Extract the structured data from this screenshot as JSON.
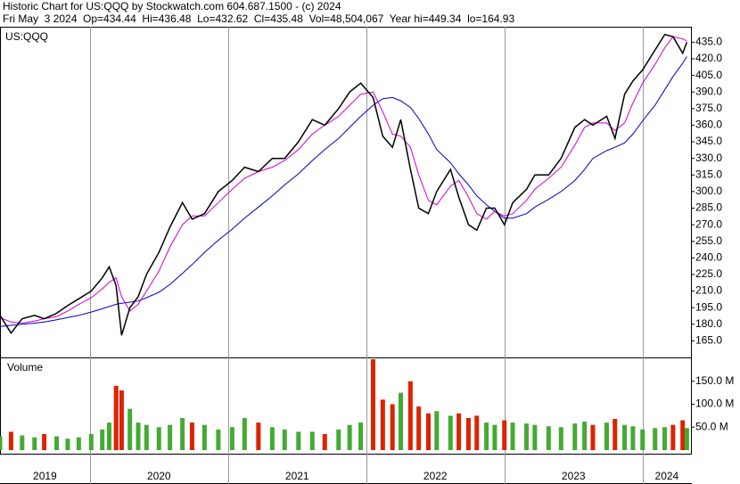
{
  "chart_data": {
    "type": "line",
    "title": "Historic Chart for US:QQQ by Stockwatch.com 604.687.1500 - (c) 2024",
    "subtitle": "Fri May  3 2024  Op=434.44  Hi=436.48  Lo=432.62  Cl=435.48  Vol=48,504,067  Year hi=449.34  lo=164.93",
    "symbol": "US:QQQ",
    "x": [
      2019.35,
      2019.43,
      2019.51,
      2019.6,
      2019.67,
      2019.76,
      2019.84,
      2019.92,
      2020.01,
      2020.09,
      2020.14,
      2020.19,
      2020.23,
      2020.29,
      2020.35,
      2020.41,
      2020.5,
      2020.58,
      2020.67,
      2020.74,
      2020.83,
      2020.93,
      2021.03,
      2021.12,
      2021.22,
      2021.32,
      2021.41,
      2021.51,
      2021.61,
      2021.7,
      2021.8,
      2021.88,
      2021.96,
      2022.05,
      2022.12,
      2022.19,
      2022.25,
      2022.32,
      2022.38,
      2022.45,
      2022.51,
      2022.61,
      2022.67,
      2022.74,
      2022.8,
      2022.87,
      2022.93,
      2023.0,
      2023.06,
      2023.16,
      2023.22,
      2023.32,
      2023.41,
      2023.51,
      2023.58,
      2023.64,
      2023.74,
      2023.8,
      2023.87,
      2023.93,
      2024.0,
      2024.09,
      2024.16,
      2024.22,
      2024.29,
      2024.32
    ],
    "xlim": [
      2019.35,
      2024.35
    ],
    "xticks": [
      2020,
      2021,
      2022,
      2023,
      2024
    ],
    "year_labels": [
      "2019",
      "2020",
      "2021",
      "2022",
      "2023",
      "2024"
    ],
    "grid": "x",
    "series": [
      {
        "color": "#000000",
        "values": [
          188,
          172,
          185,
          188,
          185,
          190,
          197,
          203,
          210,
          222,
          232,
          215,
          170,
          195,
          205,
          225,
          245,
          268,
          290,
          275,
          280,
          300,
          310,
          322,
          318,
          330,
          330,
          345,
          365,
          360,
          375,
          390,
          398,
          385,
          350,
          340,
          365,
          320,
          285,
          280,
          300,
          320,
          295,
          270,
          265,
          285,
          285,
          270,
          290,
          302,
          315,
          315,
          330,
          358,
          365,
          360,
          368,
          348,
          388,
          400,
          410,
          428,
          442,
          440,
          425,
          435
        ]
      },
      {
        "color": "#d000d0",
        "values": [
          186,
          182,
          181,
          183,
          185,
          187,
          192,
          198,
          204,
          212,
          218,
          222,
          205,
          192,
          198,
          210,
          228,
          250,
          270,
          278,
          278,
          290,
          302,
          312,
          318,
          322,
          328,
          338,
          352,
          360,
          368,
          378,
          388,
          390,
          372,
          352,
          350,
          340,
          315,
          292,
          288,
          305,
          310,
          295,
          280,
          275,
          282,
          278,
          280,
          292,
          302,
          312,
          322,
          342,
          358,
          362,
          362,
          355,
          362,
          380,
          398,
          415,
          430,
          440,
          438,
          436
        ]
      },
      {
        "color": "#0000c0",
        "values": [
          178,
          179,
          180,
          181,
          182,
          184,
          186,
          188,
          191,
          194,
          196,
          198,
          199,
          200,
          201,
          204,
          209,
          216,
          226,
          234,
          245,
          256,
          266,
          276,
          286,
          296,
          306,
          316,
          328,
          338,
          348,
          358,
          368,
          378,
          384,
          385,
          382,
          376,
          366,
          352,
          338,
          326,
          316,
          306,
          296,
          288,
          282,
          276,
          276,
          280,
          286,
          293,
          300,
          310,
          320,
          330,
          337,
          340,
          344,
          352,
          364,
          378,
          392,
          404,
          416,
          422
        ]
      }
    ],
    "ylim": [
      150,
      449
    ],
    "yticks": [
      {
        "value": 165,
        "label": "165.0"
      },
      {
        "value": 180,
        "label": "180.0"
      },
      {
        "value": 195,
        "label": "195.0"
      },
      {
        "value": 210,
        "label": "210.0"
      },
      {
        "value": 225,
        "label": "225.0"
      },
      {
        "value": 240,
        "label": "240.0"
      },
      {
        "value": 255,
        "label": "255.0"
      },
      {
        "value": 270,
        "label": "270.0"
      },
      {
        "value": 285,
        "label": "285.0"
      },
      {
        "value": 300,
        "label": "300.0"
      },
      {
        "value": 315,
        "label": "315.0"
      },
      {
        "value": 330,
        "label": "330.0"
      },
      {
        "value": 345,
        "label": "345.0"
      },
      {
        "value": 360,
        "label": "360.0"
      },
      {
        "value": 375,
        "label": "375.0"
      },
      {
        "value": 390,
        "label": "390.0"
      },
      {
        "value": 405,
        "label": "405.0"
      },
      {
        "value": 420,
        "label": "420.0"
      },
      {
        "value": 435,
        "label": "435.0"
      }
    ],
    "volume": {
      "label": "Volume",
      "up_color": "#44aa33",
      "down_color": "#dd2200",
      "values": [
        30,
        40,
        32,
        28,
        35,
        30,
        25,
        28,
        35,
        45,
        60,
        140,
        130,
        90,
        60,
        55,
        50,
        55,
        70,
        60,
        55,
        45,
        50,
        70,
        60,
        50,
        45,
        40,
        40,
        35,
        45,
        55,
        60,
        198,
        110,
        100,
        125,
        150,
        95,
        80,
        85,
        75,
        80,
        70,
        75,
        60,
        55,
        65,
        60,
        58,
        55,
        52,
        50,
        58,
        62,
        55,
        60,
        68,
        55,
        52,
        45,
        48,
        50,
        55,
        65,
        48
      ],
      "ylim": [
        0,
        200
      ],
      "yticks": [
        {
          "value": 50,
          "label": "50.0 M"
        },
        {
          "value": 100,
          "label": "100.0 M"
        },
        {
          "value": 150,
          "label": "150.0 M"
        }
      ]
    }
  }
}
